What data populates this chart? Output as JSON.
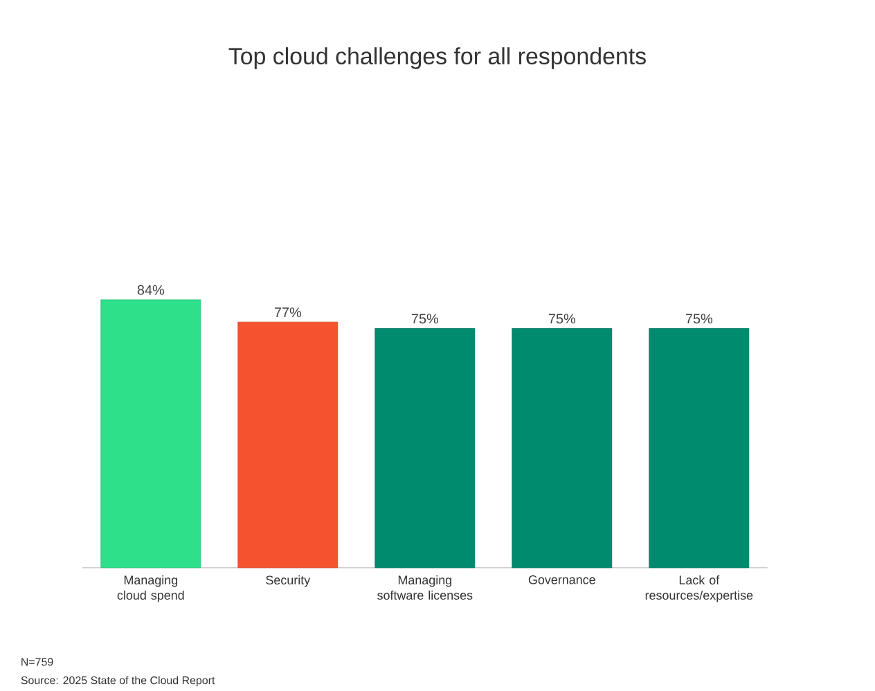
{
  "chart_data": {
    "type": "bar",
    "title": "Top cloud challenges for all respondents",
    "categories": [
      "Managing cloud spend",
      "Security",
      "Managing software licenses",
      "Governance",
      "Lack of resources/expertise"
    ],
    "values": [
      84,
      77,
      75,
      75,
      75
    ],
    "colors": [
      "#2ee08a",
      "#f5532f",
      "#008a6e",
      "#008a6e",
      "#008a6e"
    ],
    "value_labels": [
      "84%",
      "77%",
      "75%",
      "75%",
      "75%"
    ],
    "annotations": [
      "N=759",
      "Source: 2025 State of the Cloud Report"
    ]
  }
}
